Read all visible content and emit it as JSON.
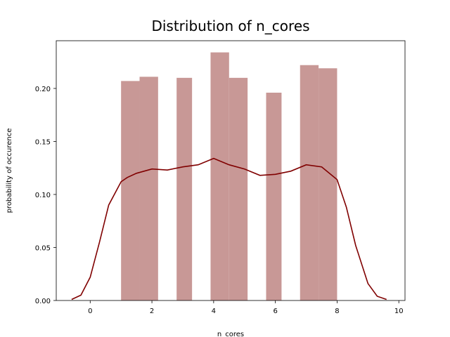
{
  "chart_data": {
    "type": "bar",
    "title": "Distribution of n_cores",
    "xlabel": "n_cores",
    "ylabel": "probability of occurence",
    "xlim": [
      -1.1,
      10.2
    ],
    "ylim": [
      0,
      0.245
    ],
    "x_ticks": [
      0,
      2,
      4,
      6,
      8,
      10
    ],
    "y_ticks": [
      0.0,
      0.05,
      0.1,
      0.15,
      0.2
    ],
    "x_tick_labels": [
      "0",
      "2",
      "4",
      "6",
      "8",
      "10"
    ],
    "y_tick_labels": [
      "0.00",
      "0.05",
      "0.10",
      "0.15",
      "0.20"
    ],
    "grid": false,
    "bar_color": "#c89896",
    "line_color": "#800000",
    "bars": [
      {
        "x0": 1.0,
        "x1": 1.6,
        "value": 0.207
      },
      {
        "x0": 1.6,
        "x1": 2.2,
        "value": 0.211
      },
      {
        "x0": 2.8,
        "x1": 3.3,
        "value": 0.21
      },
      {
        "x0": 3.9,
        "x1": 4.5,
        "value": 0.234
      },
      {
        "x0": 4.5,
        "x1": 5.1,
        "value": 0.21
      },
      {
        "x0": 5.7,
        "x1": 6.2,
        "value": 0.196
      },
      {
        "x0": 6.8,
        "x1": 7.4,
        "value": 0.222
      },
      {
        "x0": 7.4,
        "x1": 8.0,
        "value": 0.219
      }
    ],
    "kde": {
      "x": [
        -0.6,
        -0.3,
        0.0,
        0.3,
        0.6,
        1.0,
        1.2,
        1.5,
        2.0,
        2.5,
        3.0,
        3.5,
        4.0,
        4.5,
        5.0,
        5.5,
        6.0,
        6.5,
        7.0,
        7.5,
        8.0,
        8.3,
        8.6,
        9.0,
        9.3,
        9.6
      ],
      "y": [
        0.001,
        0.005,
        0.022,
        0.055,
        0.09,
        0.112,
        0.116,
        0.12,
        0.124,
        0.123,
        0.126,
        0.128,
        0.134,
        0.128,
        0.124,
        0.118,
        0.119,
        0.122,
        0.128,
        0.126,
        0.114,
        0.088,
        0.052,
        0.016,
        0.004,
        0.001
      ]
    }
  }
}
